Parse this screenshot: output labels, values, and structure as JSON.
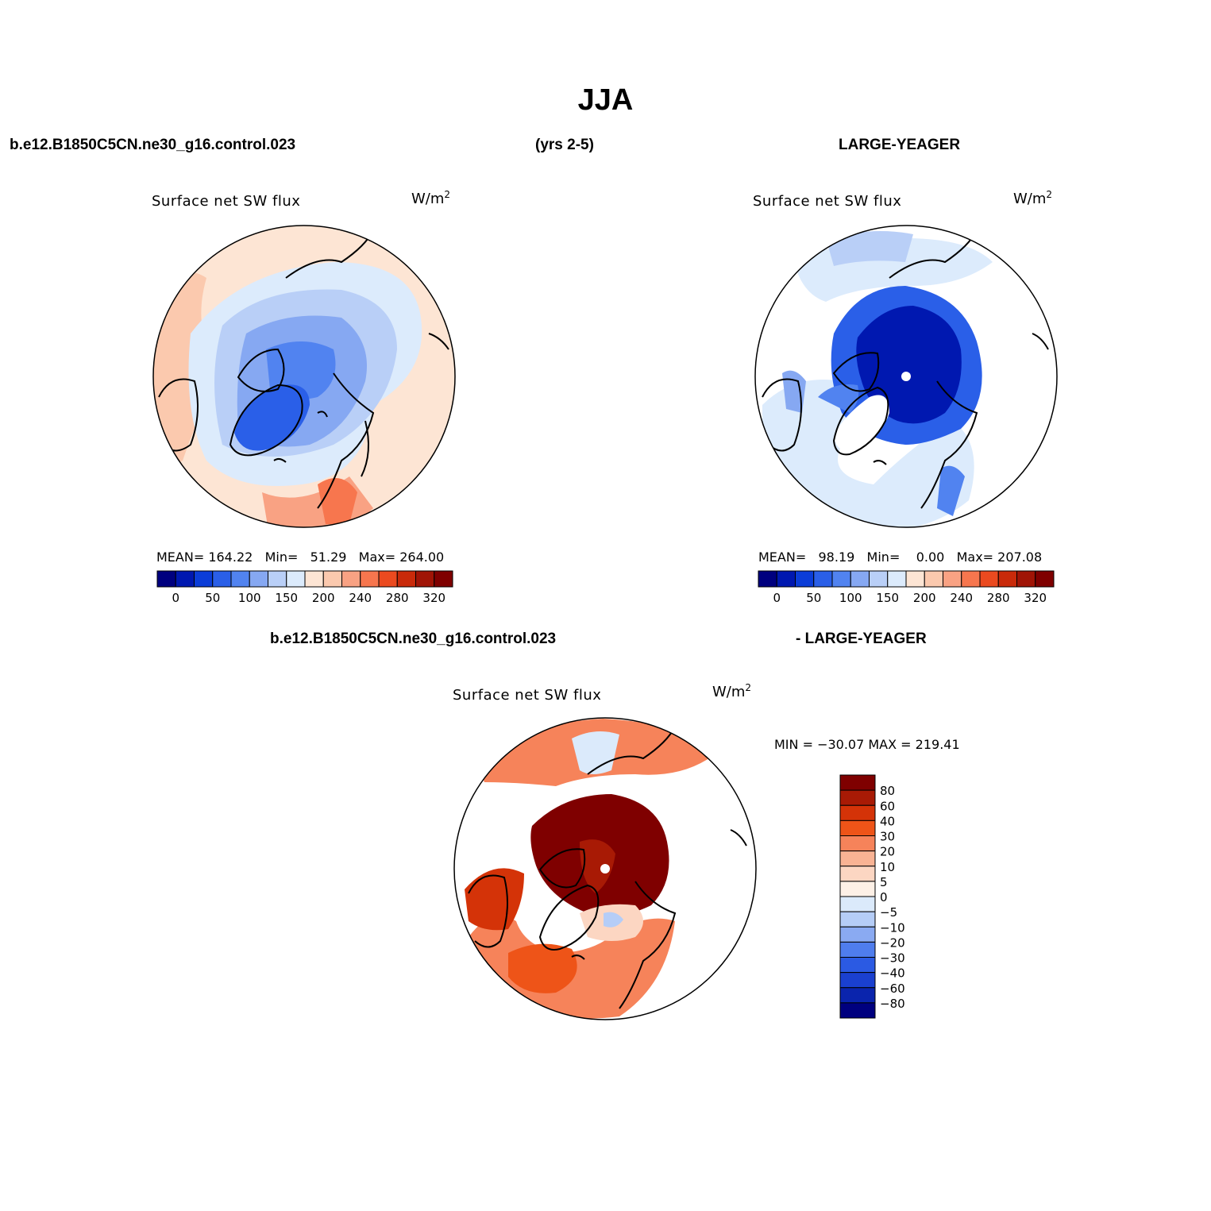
{
  "title": "JJA",
  "header": {
    "case_left": "b.e12.B1850C5CN.ne30_g16.control.023",
    "years": "(yrs 2-5)",
    "case_right": "LARGE-YEAGER"
  },
  "diff_header": {
    "left": "b.e12.B1850C5CN.ne30_g16.control.023",
    "right": "- LARGE-YEAGER"
  },
  "panels": [
    {
      "title": "Surface net SW flux",
      "units": "W/m",
      "units_exp": "2",
      "stats": "MEAN= 164.22   Min=   51.29   Max= 264.00",
      "colorbar_labels": [
        "0",
        "50",
        "100",
        "150",
        "200",
        "240",
        "280",
        "320"
      ]
    },
    {
      "title": "Surface net SW flux",
      "units": "W/m",
      "units_exp": "2",
      "stats": "MEAN=   98.19   Min=    0.00   Max= 207.08",
      "colorbar_labels": [
        "0",
        "50",
        "100",
        "150",
        "200",
        "240",
        "280",
        "320"
      ]
    },
    {
      "title": "Surface net SW flux",
      "units": "W/m",
      "units_exp": "2",
      "stats": "MIN = −30.07 MAX = 219.41",
      "colorbar_labels": [
        "80",
        "60",
        "40",
        "30",
        "20",
        "10",
        "5",
        "0",
        "−5",
        "−10",
        "−20",
        "−30",
        "−40",
        "−60",
        "−80"
      ]
    }
  ],
  "colors": {
    "abs_scale": [
      "#00007f",
      "#0018b0",
      "#0b3dd8",
      "#2a5fe8",
      "#5183f0",
      "#86a8f2",
      "#b9cff7",
      "#dcebfc",
      "#fde5d4",
      "#fbc9ae",
      "#f9a283",
      "#f7764e",
      "#eb4a1f",
      "#c92a0a",
      "#a01406",
      "#7f0000"
    ],
    "diff_scale": [
      "#7f0000",
      "#a81a05",
      "#d43308",
      "#ee5418",
      "#f6835a",
      "#f9b394",
      "#fcd6c2",
      "#fdf0e6",
      "#dbeafb",
      "#b5cdf7",
      "#8aaaf2",
      "#4f7ded",
      "#2b5ae3",
      "#1a40d0",
      "#0a24ad",
      "#00007f"
    ]
  }
}
